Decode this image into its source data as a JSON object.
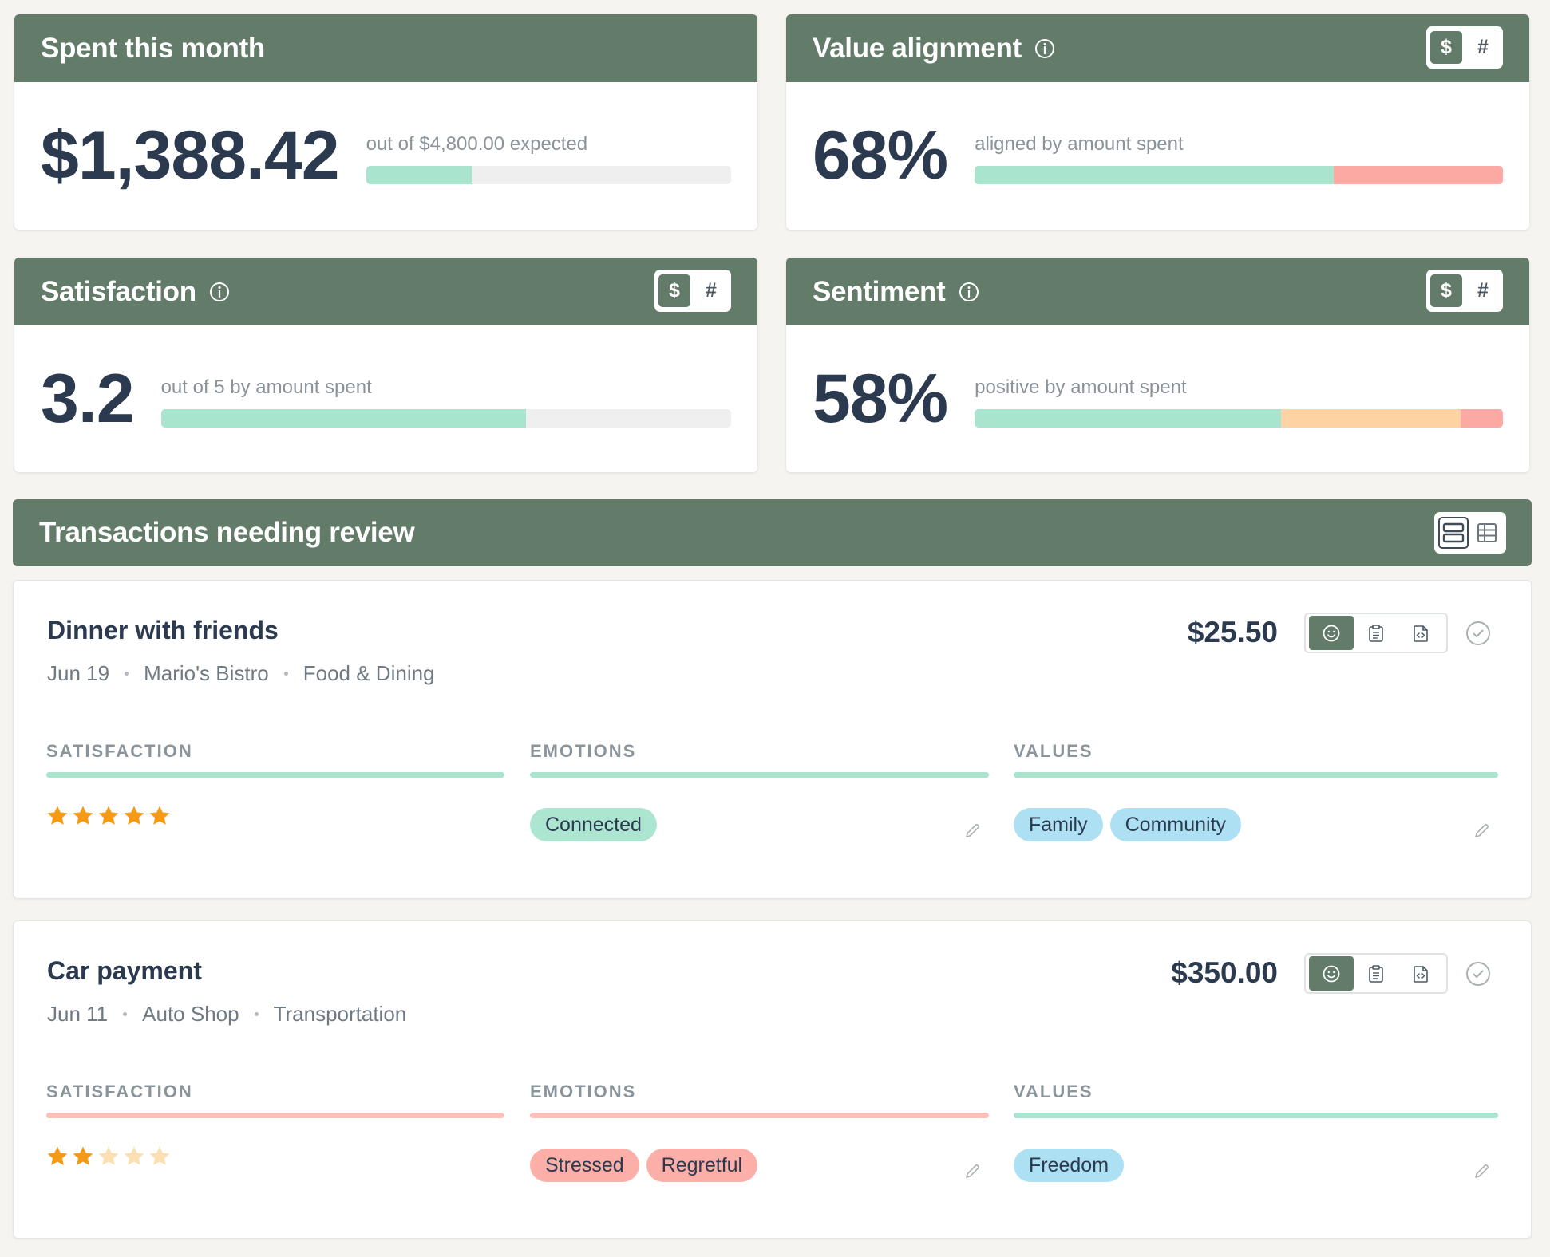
{
  "colors": {
    "header_green": "#637b69",
    "bar_positive": "#a9e4cf",
    "bar_negative": "#fba9a2",
    "bar_neutral": "#fdd3a4",
    "bar_track": "#efefef",
    "star_filled": "#f49a13",
    "star_empty": "#fbdfb2",
    "chip_emotion_positive": "#ade6d0",
    "chip_emotion_negative": "#fcafa8",
    "chip_value": "#ade0f2",
    "line_positive": "#a9e4cf",
    "line_negative": "#fbc0ba"
  },
  "metrics": {
    "spent": {
      "title": "Spent this month",
      "value": "$1,388.42",
      "caption": "out of $4,800.00 expected",
      "fraction_spent": 0.289
    },
    "alignment": {
      "title": "Value alignment",
      "info_icon": "info-icon",
      "toggle": {
        "dollar": "$",
        "count": "#",
        "selected": "dollar"
      },
      "value": "68%",
      "caption": "aligned by amount spent",
      "segments": [
        {
          "label": "aligned",
          "fraction": 0.68,
          "color": "#a9e4cf"
        },
        {
          "label": "misaligned",
          "fraction": 0.32,
          "color": "#fba9a2"
        }
      ]
    },
    "satisfaction": {
      "title": "Satisfaction",
      "info_icon": "info-icon",
      "toggle": {
        "dollar": "$",
        "count": "#",
        "selected": "dollar"
      },
      "value": "3.2",
      "caption": "out of 5 by amount spent",
      "fraction": 0.64
    },
    "sentiment": {
      "title": "Sentiment",
      "info_icon": "info-icon",
      "toggle": {
        "dollar": "$",
        "count": "#",
        "selected": "dollar"
      },
      "value": "58%",
      "caption": "positive by amount spent",
      "segments": [
        {
          "label": "positive",
          "fraction": 0.58,
          "color": "#a9e4cf"
        },
        {
          "label": "neutral",
          "fraction": 0.34,
          "color": "#fdd3a4"
        },
        {
          "label": "negative",
          "fraction": 0.08,
          "color": "#fba9a2"
        }
      ]
    }
  },
  "review": {
    "title": "Transactions needing review",
    "view_modes": [
      "list-view-icon",
      "table-view-icon"
    ],
    "selected_view": "list",
    "column_labels": {
      "satisfaction": "SATISFACTION",
      "emotions": "EMOTIONS",
      "values": "VALUES"
    },
    "transactions": [
      {
        "name": "Dinner with friends",
        "date": "Jun 19",
        "merchant": "Mario's Bistro",
        "category": "Food & Dining",
        "amount": "$25.50",
        "rating": 5,
        "satisfaction_tone": "positive",
        "emotions_tone": "positive",
        "values_tone": "positive",
        "emotions": [
          "Connected"
        ],
        "values": [
          "Family",
          "Community"
        ]
      },
      {
        "name": "Car payment",
        "date": "Jun 11",
        "merchant": "Auto Shop",
        "category": "Transportation",
        "amount": "$350.00",
        "rating": 2,
        "satisfaction_tone": "negative",
        "emotions_tone": "negative",
        "values_tone": "positive",
        "emotions": [
          "Stressed",
          "Regretful"
        ],
        "values": [
          "Freedom"
        ]
      }
    ]
  }
}
